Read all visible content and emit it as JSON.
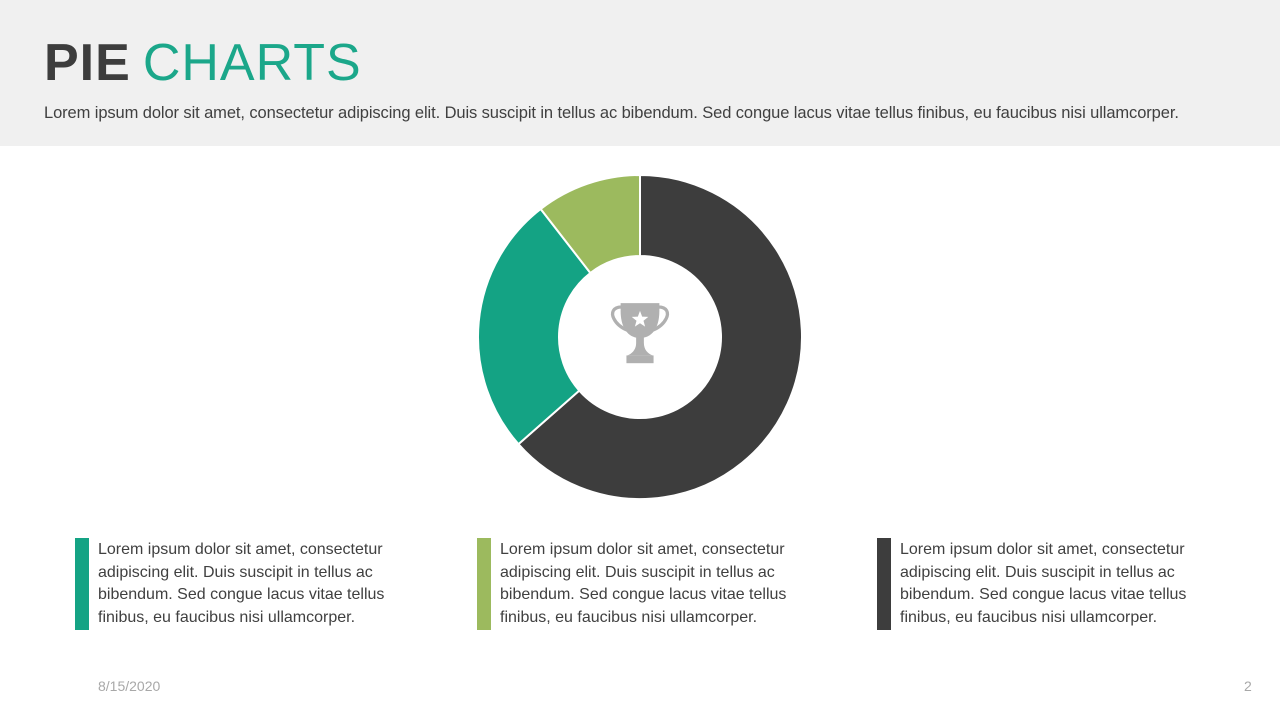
{
  "slide": {
    "title": {
      "part1": "PIE",
      "part2": "CHARTS"
    },
    "subtitle": "Lorem ipsum dolor sit amet, consectetur adipiscing elit. Duis suscipit in tellus ac bibendum. Sed congue lacus vitae tellus finibus, eu faucibus nisi ullamcorper.",
    "footer": {
      "date": "8/15/2020",
      "page_number": "2"
    }
  },
  "chart_data": {
    "type": "pie",
    "subtype": "donut",
    "title": "",
    "direction": "clockwise",
    "start_angle_deg": 0,
    "inner_radius_ratio": 0.5,
    "center_icon": "trophy-icon",
    "data_labels": false,
    "legend": false,
    "slices": [
      {
        "label": "segment-dark",
        "value": 63.5,
        "color": "#3d3d3d"
      },
      {
        "label": "segment-teal",
        "value": 26.0,
        "color": "#14a384"
      },
      {
        "label": "segment-green",
        "value": 10.5,
        "color": "#9cba5e"
      }
    ]
  },
  "text_blocks": [
    {
      "accent_color": "#14a384",
      "text": "Lorem ipsum dolor sit amet, consectetur adipiscing elit.  Duis suscipit in tellus ac bibendum. Sed congue lacus vitae tellus finibus, eu faucibus nisi ullamcorper."
    },
    {
      "accent_color": "#9cba5e",
      "text": "Lorem ipsum dolor sit amet, consectetur adipiscing elit.  Duis suscipit in tellus ac bibendum. Sed congue lacus vitae tellus finibus, eu faucibus nisi ullamcorper."
    },
    {
      "accent_color": "#3d3d3d",
      "text": "Lorem ipsum dolor sit amet, consectetur adipiscing elit.  Duis suscipit in tellus ac bibendum. Sed congue lacus vitae tellus finibus, eu faucibus nisi ullamcorper."
    }
  ],
  "colors": {
    "header_bg": "#f0f0f0",
    "slide_bg": "#ffffff",
    "title_dark": "#3d3d3d",
    "title_accent": "#1ba78a",
    "body_text": "#404040",
    "muted_text": "#a8a8a8",
    "trophy_gray": "#b0b0b0"
  }
}
